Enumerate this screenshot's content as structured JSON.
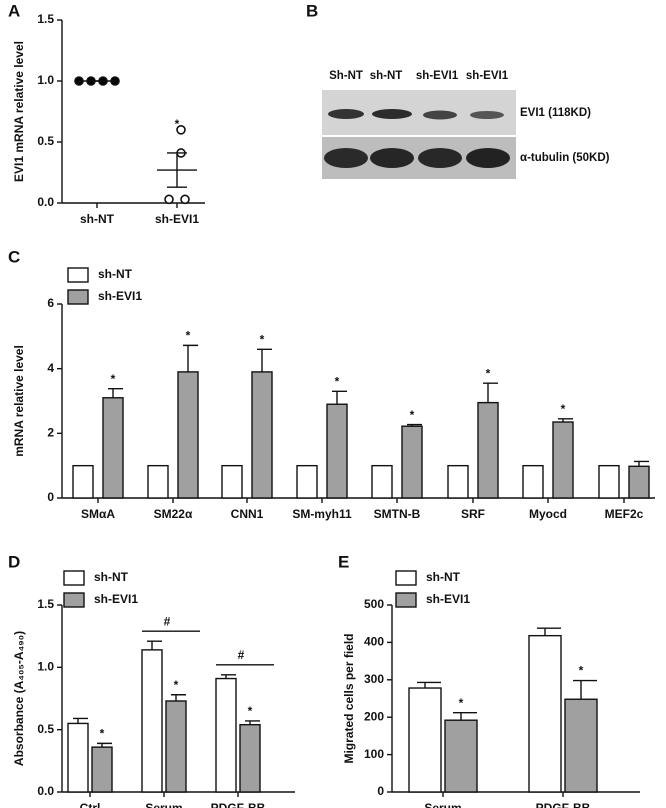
{
  "blot": {
    "panel": "B",
    "lanes": [
      "Sh-NT",
      "sh-NT",
      "sh-EVI1",
      "sh-EVI1"
    ],
    "bands": [
      "EVI1 (118KD)",
      "α-tubulin (50KD)"
    ]
  },
  "chart_data": [
    {
      "panel": "A",
      "type": "dotplot",
      "ylabel": "EVI1 mRNA relative level",
      "categories": [
        "sh-NT",
        "sh-EVI1"
      ],
      "points": [
        [
          1,
          1,
          1,
          1
        ],
        [
          0.6,
          0.41,
          0.03,
          0.03
        ]
      ],
      "means": [
        1,
        0.27
      ],
      "errors": [
        0,
        0.14
      ],
      "annotations": [
        null,
        "*"
      ],
      "marker_fills": [
        "#000000",
        "#ffffff"
      ],
      "ylim": [
        0,
        1.5
      ],
      "yticks": [
        {
          "value": 0,
          "label": "0.0"
        },
        0.5,
        {
          "value": 1,
          "label": "1.0"
        },
        1.5
      ]
    },
    {
      "panel": "C",
      "type": "bar",
      "ylabel": "mRNA relative level",
      "categories": [
        "SMαA",
        "SM22α",
        "CNN1",
        "SM-myh11",
        "SMTN-B",
        "SRF",
        "Myocd",
        "MEF2c"
      ],
      "series": [
        {
          "name": "sh-NT",
          "color": "#ffffff",
          "values": [
            1,
            1,
            1,
            1,
            1,
            1,
            1,
            1
          ]
        },
        {
          "name": "sh-EVI1",
          "color": "#a0a0a0",
          "values": [
            3.1,
            3.9,
            3.9,
            2.9,
            2.22,
            2.95,
            2.35,
            0.98
          ],
          "errors": [
            0.28,
            0.82,
            0.7,
            0.4,
            0.05,
            0.6,
            0.1,
            0.15
          ],
          "annotations": [
            "*",
            "*",
            "*",
            "*",
            "*",
            "*",
            "*",
            null
          ]
        }
      ],
      "ylim": [
        0,
        6
      ],
      "yticks": [
        0,
        2,
        4,
        6
      ],
      "legend": "top-left"
    },
    {
      "panel": "D",
      "type": "bar",
      "ylabel": "Absorbance (A₄₀₅-A₄₉₀)",
      "categories": [
        "Ctrl",
        "Serum",
        "PDGF-BB"
      ],
      "series": [
        {
          "name": "sh-NT",
          "color": "#ffffff",
          "values": [
            0.55,
            1.14,
            0.91
          ],
          "errors": [
            0.04,
            0.07,
            0.03
          ]
        },
        {
          "name": "sh-EVI1",
          "color": "#a0a0a0",
          "values": [
            0.36,
            0.73,
            0.54
          ],
          "errors": [
            0.03,
            0.05,
            0.03
          ],
          "annotations": [
            "*",
            "*",
            "*"
          ]
        }
      ],
      "brackets": [
        {
          "category": 1,
          "text": "#"
        },
        {
          "category": 2,
          "text": "#"
        }
      ],
      "ylim": [
        0,
        1.5
      ],
      "yticks": [
        {
          "value": 0,
          "label": "0.0"
        },
        0.5,
        {
          "value": 1,
          "label": "1.0"
        },
        1.5
      ],
      "legend": "top-left"
    },
    {
      "panel": "E",
      "type": "bar",
      "ylabel": "Migrated cells per field",
      "categories": [
        "Serum",
        "PDGF-BB"
      ],
      "series": [
        {
          "name": "sh-NT",
          "color": "#ffffff",
          "values": [
            278,
            418
          ],
          "errors": [
            15,
            20
          ]
        },
        {
          "name": "sh-EVI1",
          "color": "#a0a0a0",
          "values": [
            192,
            248
          ],
          "errors": [
            20,
            50
          ],
          "annotations": [
            "*",
            "*"
          ]
        }
      ],
      "ylim": [
        0,
        500
      ],
      "yticks": [
        0,
        100,
        200,
        300,
        400,
        500
      ],
      "legend": "top-left"
    }
  ]
}
